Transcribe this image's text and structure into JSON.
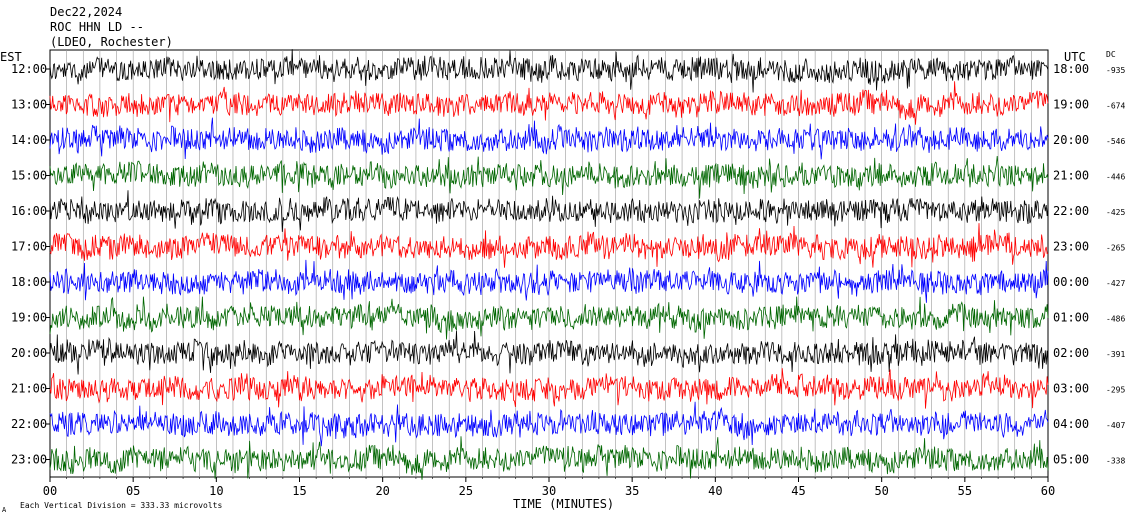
{
  "header": {
    "date": "Dec22,2024",
    "station": "ROC HHN LD --",
    "location": "(LDEO, Rochester)"
  },
  "left_axis_label": "EST",
  "right_axis_label": "UTC",
  "dc_label": "DC",
  "footer": {
    "scale_note": "Each Vertical Division =  333.33 microvolts",
    "mark": "A"
  },
  "colors": {
    "black": "#000000",
    "red": "#ff0000",
    "blue": "#0000ff",
    "green": "#006600"
  },
  "chart_data": {
    "type": "line",
    "title": "ROC HHN LD --",
    "xlabel": "TIME (MINUTES)",
    "ylabel": "",
    "x_ticks": [
      "00",
      "05",
      "10",
      "15",
      "20",
      "25",
      "30",
      "35",
      "40",
      "45",
      "50",
      "55",
      "60"
    ],
    "xlim": [
      0,
      60
    ],
    "grid": "vertical lines at 1-minute intervals",
    "rows": [
      {
        "est": "12:00",
        "utc": "18:00",
        "dc": "-935",
        "color": "black"
      },
      {
        "est": "13:00",
        "utc": "19:00",
        "dc": "-674",
        "color": "red"
      },
      {
        "est": "14:00",
        "utc": "20:00",
        "dc": "-546",
        "color": "blue"
      },
      {
        "est": "15:00",
        "utc": "21:00",
        "dc": "-446",
        "color": "green"
      },
      {
        "est": "16:00",
        "utc": "22:00",
        "dc": "-425",
        "color": "black"
      },
      {
        "est": "17:00",
        "utc": "23:00",
        "dc": "-265",
        "color": "red"
      },
      {
        "est": "18:00",
        "utc": "00:00",
        "dc": "-427",
        "color": "blue"
      },
      {
        "est": "19:00",
        "utc": "01:00",
        "dc": "-486",
        "color": "green"
      },
      {
        "est": "20:00",
        "utc": "02:00",
        "dc": "-391",
        "color": "black"
      },
      {
        "est": "21:00",
        "utc": "03:00",
        "dc": "-295",
        "color": "red"
      },
      {
        "est": "22:00",
        "utc": "04:00",
        "dc": "-407",
        "color": "blue"
      },
      {
        "est": "23:00",
        "utc": "05:00",
        "dc": "-338",
        "color": "green"
      }
    ]
  }
}
